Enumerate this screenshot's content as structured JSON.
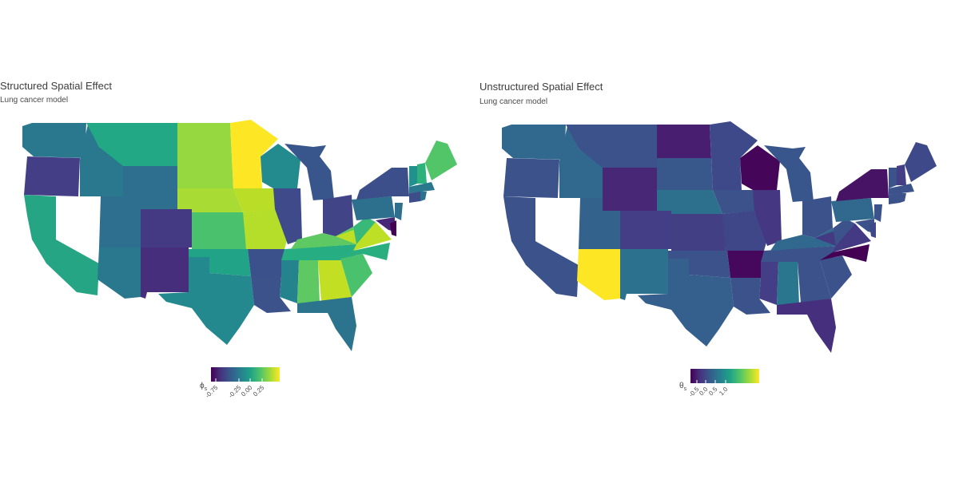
{
  "panels": [
    {
      "title": "Structured Spatial Effect",
      "subtitle": "Lung cancer model",
      "legend": {
        "symbol": "ϕ",
        "subscript": "s",
        "ticks": [
          "-0.75",
          "-0.25",
          "0.00",
          "0.25"
        ],
        "colors": [
          "#440154",
          "#46327e",
          "#365c8d",
          "#277f8e",
          "#1fa187",
          "#4ac16d",
          "#a0da39",
          "#fde725"
        ]
      }
    },
    {
      "title": "Unstructured Spatial Effect",
      "subtitle": "Lung cancer model",
      "legend": {
        "symbol": "θ",
        "subscript": "s",
        "ticks": [
          "-0.5",
          "0.0",
          "0.5",
          "1.0"
        ],
        "colors": [
          "#440154",
          "#46327e",
          "#365c8d",
          "#277f8e",
          "#1fa187",
          "#4ac16d",
          "#a0da39",
          "#fde725"
        ]
      }
    }
  ]
}
